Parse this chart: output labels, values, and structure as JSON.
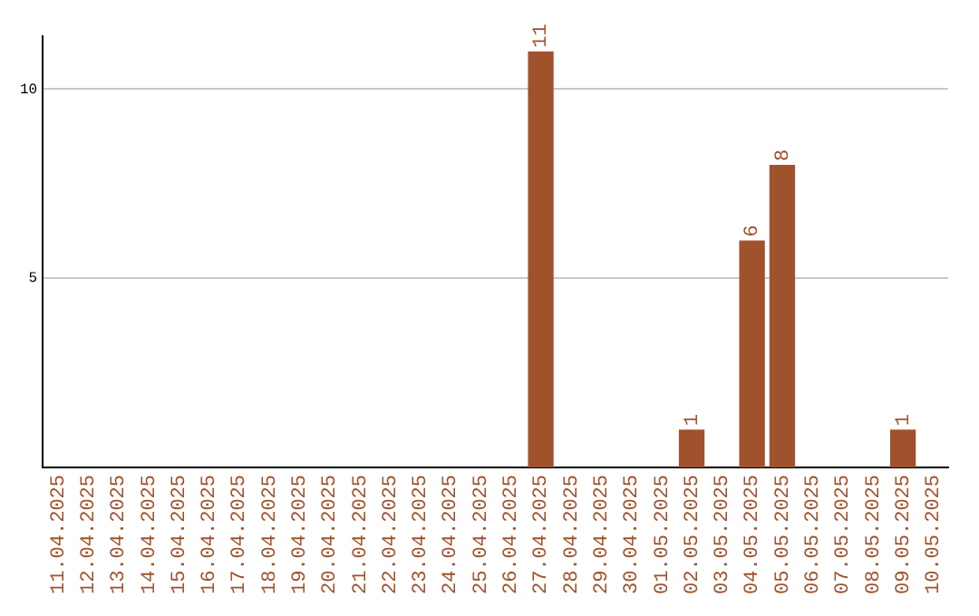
{
  "chart_data": {
    "type": "bar",
    "categories": [
      "11.04.2025",
      "12.04.2025",
      "13.04.2025",
      "14.04.2025",
      "15.04.2025",
      "16.04.2025",
      "17.04.2025",
      "18.04.2025",
      "19.04.2025",
      "20.04.2025",
      "21.04.2025",
      "22.04.2025",
      "23.04.2025",
      "24.04.2025",
      "25.04.2025",
      "26.04.2025",
      "27.04.2025",
      "28.04.2025",
      "29.04.2025",
      "30.04.2025",
      "01.05.2025",
      "02.05.2025",
      "03.05.2025",
      "04.05.2025",
      "05.05.2025",
      "06.05.2025",
      "07.05.2025",
      "08.05.2025",
      "09.05.2025",
      "10.05.2025"
    ],
    "values": [
      0,
      0,
      0,
      0,
      0,
      0,
      0,
      0,
      0,
      0,
      0,
      0,
      0,
      0,
      0,
      0,
      11,
      0,
      0,
      0,
      0,
      1,
      0,
      6,
      8,
      0,
      0,
      0,
      1,
      0
    ],
    "value_labels": [
      null,
      null,
      null,
      null,
      null,
      null,
      null,
      null,
      null,
      null,
      null,
      null,
      null,
      null,
      null,
      null,
      "11",
      null,
      null,
      null,
      null,
      "1",
      null,
      "6",
      "8",
      null,
      null,
      null,
      "1",
      null
    ],
    "color": "#a0522d",
    "ylim": [
      0,
      11.4
    ],
    "yticks": [
      5,
      10
    ],
    "grid": "y",
    "legend": false
  }
}
